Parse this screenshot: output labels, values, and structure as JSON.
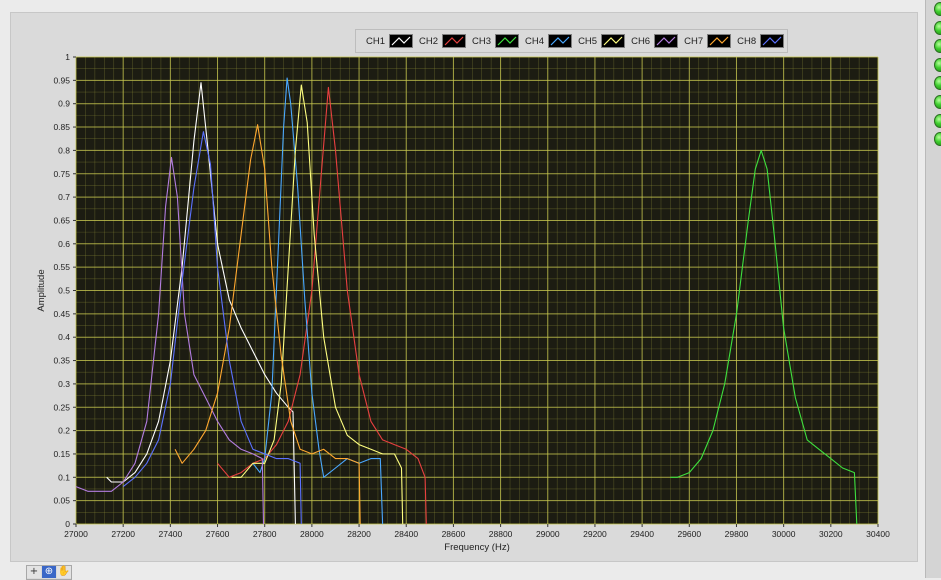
{
  "chart_data": {
    "type": "line",
    "title": "",
    "xlabel": "Frequency (Hz)",
    "ylabel": "Amplitude",
    "xlim": [
      27000,
      30400
    ],
    "ylim": [
      0,
      1
    ],
    "x_ticks": [
      "27000",
      "27200",
      "27400",
      "27600",
      "27800",
      "28000",
      "28200",
      "28400",
      "28600",
      "28800",
      "29000",
      "29200",
      "29400",
      "29600",
      "29800",
      "30000",
      "30200",
      "30400"
    ],
    "y_ticks": [
      "0",
      "0.05",
      "0.1",
      "0.15",
      "0.2",
      "0.25",
      "0.3",
      "0.35",
      "0.4",
      "0.45",
      "0.5",
      "0.55",
      "0.6",
      "0.65",
      "0.7",
      "0.75",
      "0.8",
      "0.85",
      "0.9",
      "0.95",
      "1"
    ],
    "grid": true,
    "background": "#1c1c12",
    "grid_color": "#8f8f3a",
    "legend_position": "top-right",
    "legend": [
      "CH1",
      "CH2",
      "CH3",
      "CH4",
      "CH5",
      "CH6",
      "CH7",
      "CH8"
    ],
    "series": [
      {
        "name": "CH1",
        "color": "#ffffff",
        "points": [
          [
            27130,
            0.1
          ],
          [
            27150,
            0.09
          ],
          [
            27200,
            0.09
          ],
          [
            27250,
            0.11
          ],
          [
            27300,
            0.15
          ],
          [
            27350,
            0.22
          ],
          [
            27400,
            0.35
          ],
          [
            27450,
            0.55
          ],
          [
            27500,
            0.82
          ],
          [
            27530,
            0.945
          ],
          [
            27560,
            0.8
          ],
          [
            27600,
            0.6
          ],
          [
            27650,
            0.48
          ],
          [
            27700,
            0.42
          ],
          [
            27750,
            0.37
          ],
          [
            27800,
            0.32
          ],
          [
            27850,
            0.28
          ],
          [
            27900,
            0.25
          ],
          [
            27920,
            0.24
          ],
          [
            27930,
            0.0
          ]
        ]
      },
      {
        "name": "CH2",
        "color": "#e84040",
        "points": [
          [
            27600,
            0.13
          ],
          [
            27650,
            0.1
          ],
          [
            27700,
            0.11
          ],
          [
            27750,
            0.13
          ],
          [
            27800,
            0.14
          ],
          [
            27850,
            0.17
          ],
          [
            27900,
            0.22
          ],
          [
            27950,
            0.32
          ],
          [
            28000,
            0.5
          ],
          [
            28040,
            0.75
          ],
          [
            28070,
            0.935
          ],
          [
            28100,
            0.8
          ],
          [
            28150,
            0.5
          ],
          [
            28200,
            0.32
          ],
          [
            28250,
            0.22
          ],
          [
            28300,
            0.18
          ],
          [
            28350,
            0.17
          ],
          [
            28400,
            0.16
          ],
          [
            28450,
            0.14
          ],
          [
            28480,
            0.1
          ],
          [
            28485,
            0.0
          ]
        ]
      },
      {
        "name": "CH3",
        "color": "#3ee03e",
        "points": [
          [
            29520,
            0.1
          ],
          [
            29550,
            0.1
          ],
          [
            29600,
            0.11
          ],
          [
            29650,
            0.14
          ],
          [
            29700,
            0.2
          ],
          [
            29750,
            0.3
          ],
          [
            29800,
            0.45
          ],
          [
            29850,
            0.65
          ],
          [
            29880,
            0.76
          ],
          [
            29905,
            0.8
          ],
          [
            29930,
            0.76
          ],
          [
            29960,
            0.62
          ],
          [
            30000,
            0.42
          ],
          [
            30050,
            0.27
          ],
          [
            30100,
            0.18
          ],
          [
            30150,
            0.16
          ],
          [
            30200,
            0.14
          ],
          [
            30250,
            0.12
          ],
          [
            30300,
            0.11
          ],
          [
            30310,
            0.0
          ]
        ]
      },
      {
        "name": "CH4",
        "color": "#4aa8ff",
        "points": [
          [
            27750,
            0.13
          ],
          [
            27780,
            0.11
          ],
          [
            27800,
            0.14
          ],
          [
            27830,
            0.28
          ],
          [
            27860,
            0.62
          ],
          [
            27880,
            0.85
          ],
          [
            27895,
            0.955
          ],
          [
            27910,
            0.9
          ],
          [
            27940,
            0.72
          ],
          [
            27970,
            0.48
          ],
          [
            28000,
            0.28
          ],
          [
            28030,
            0.16
          ],
          [
            28050,
            0.1
          ],
          [
            28100,
            0.12
          ],
          [
            28150,
            0.14
          ],
          [
            28200,
            0.13
          ],
          [
            28250,
            0.14
          ],
          [
            28290,
            0.14
          ],
          [
            28300,
            0.0
          ]
        ]
      },
      {
        "name": "CH5",
        "color": "#ffff80",
        "points": [
          [
            27660,
            0.1
          ],
          [
            27700,
            0.1
          ],
          [
            27750,
            0.13
          ],
          [
            27800,
            0.13
          ],
          [
            27840,
            0.18
          ],
          [
            27870,
            0.3
          ],
          [
            27900,
            0.55
          ],
          [
            27930,
            0.8
          ],
          [
            27955,
            0.94
          ],
          [
            27980,
            0.86
          ],
          [
            28010,
            0.62
          ],
          [
            28050,
            0.4
          ],
          [
            28100,
            0.25
          ],
          [
            28150,
            0.19
          ],
          [
            28200,
            0.17
          ],
          [
            28250,
            0.16
          ],
          [
            28300,
            0.15
          ],
          [
            28350,
            0.15
          ],
          [
            28380,
            0.12
          ],
          [
            28385,
            0.0
          ]
        ]
      },
      {
        "name": "CH6",
        "color": "#b37de0",
        "points": [
          [
            27000,
            0.08
          ],
          [
            27050,
            0.07
          ],
          [
            27100,
            0.07
          ],
          [
            27150,
            0.07
          ],
          [
            27200,
            0.09
          ],
          [
            27250,
            0.13
          ],
          [
            27300,
            0.22
          ],
          [
            27350,
            0.45
          ],
          [
            27380,
            0.68
          ],
          [
            27405,
            0.785
          ],
          [
            27430,
            0.7
          ],
          [
            27460,
            0.45
          ],
          [
            27500,
            0.32
          ],
          [
            27550,
            0.27
          ],
          [
            27600,
            0.22
          ],
          [
            27650,
            0.18
          ],
          [
            27700,
            0.16
          ],
          [
            27750,
            0.15
          ],
          [
            27790,
            0.14
          ],
          [
            27795,
            0.0
          ]
        ]
      },
      {
        "name": "CH7",
        "color": "#ffa830",
        "points": [
          [
            27420,
            0.16
          ],
          [
            27450,
            0.13
          ],
          [
            27500,
            0.16
          ],
          [
            27550,
            0.2
          ],
          [
            27600,
            0.28
          ],
          [
            27650,
            0.42
          ],
          [
            27700,
            0.62
          ],
          [
            27740,
            0.78
          ],
          [
            27770,
            0.855
          ],
          [
            27800,
            0.76
          ],
          [
            27830,
            0.55
          ],
          [
            27870,
            0.36
          ],
          [
            27910,
            0.22
          ],
          [
            27950,
            0.16
          ],
          [
            28000,
            0.15
          ],
          [
            28050,
            0.16
          ],
          [
            28100,
            0.14
          ],
          [
            28150,
            0.14
          ],
          [
            28200,
            0.13
          ],
          [
            28205,
            0.0
          ]
        ]
      },
      {
        "name": "CH8",
        "color": "#5c72ff",
        "points": [
          [
            27200,
            0.08
          ],
          [
            27250,
            0.1
          ],
          [
            27300,
            0.13
          ],
          [
            27350,
            0.18
          ],
          [
            27400,
            0.3
          ],
          [
            27450,
            0.52
          ],
          [
            27500,
            0.72
          ],
          [
            27540,
            0.84
          ],
          [
            27570,
            0.77
          ],
          [
            27600,
            0.55
          ],
          [
            27650,
            0.35
          ],
          [
            27700,
            0.22
          ],
          [
            27750,
            0.16
          ],
          [
            27800,
            0.15
          ],
          [
            27850,
            0.14
          ],
          [
            27900,
            0.14
          ],
          [
            27950,
            0.13
          ],
          [
            27955,
            0.0
          ]
        ]
      }
    ]
  },
  "legend_items": [
    {
      "label": "CH1",
      "color": "#ffffff"
    },
    {
      "label": "CH2",
      "color": "#e84040"
    },
    {
      "label": "CH3",
      "color": "#3ee03e"
    },
    {
      "label": "CH4",
      "color": "#4aa8ff"
    },
    {
      "label": "CH5",
      "color": "#ffff80"
    },
    {
      "label": "CH6",
      "color": "#b37de0"
    },
    {
      "label": "CH7",
      "color": "#ffa830"
    },
    {
      "label": "CH8",
      "color": "#5c72ff"
    }
  ],
  "palette_tools": [
    {
      "icon": "crosshair-icon",
      "glyph": "+"
    },
    {
      "icon": "zoom-icon",
      "glyph": "⊕"
    },
    {
      "icon": "pan-hand-icon",
      "glyph": "✋"
    }
  ],
  "indicators": {
    "count": 8,
    "color": "#3fcf2f"
  }
}
